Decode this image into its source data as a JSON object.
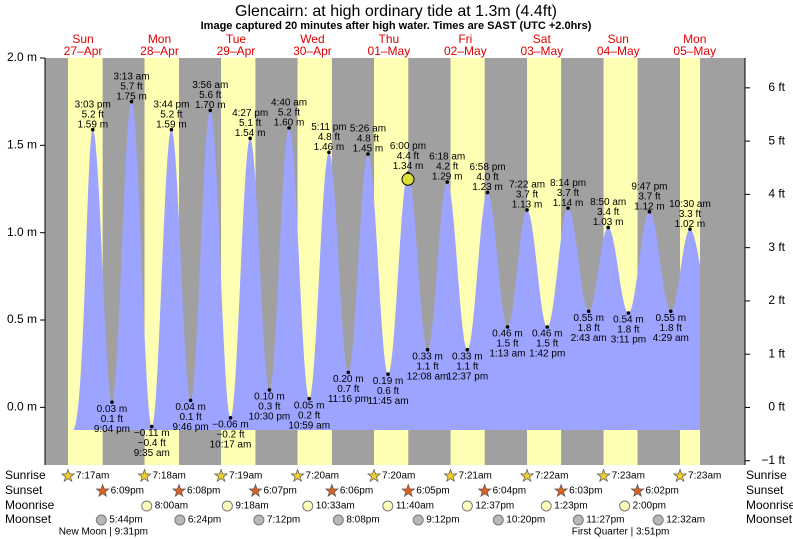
{
  "title": "Glencairn: at high  ordinary tide at 1.3m (4.4ft)",
  "subtitle": "Image captured 20 minutes after high water. Times are SAST (UTC +2.0hrs)",
  "y_axis": {
    "lim": [
      -0.33,
      2.0
    ],
    "ticks": [
      {
        "value": 2.0,
        "label": "2.0 m"
      },
      {
        "value": 1.5,
        "label": "1.5 m"
      },
      {
        "value": 1.0,
        "label": "1.0 m"
      },
      {
        "value": 0.5,
        "label": "0.5 m"
      },
      {
        "value": 0.0,
        "label": "0.0 m"
      }
    ]
  },
  "y2_axis": {
    "lim": [
      -1.08,
      6.56
    ],
    "ticks": [
      {
        "value": 6,
        "label": "6 ft"
      },
      {
        "value": 5,
        "label": "5 ft"
      },
      {
        "value": 4,
        "label": "4 ft"
      },
      {
        "value": 3,
        "label": "3 ft"
      },
      {
        "value": 2,
        "label": "2 ft"
      },
      {
        "value": 1,
        "label": "1 ft"
      },
      {
        "value": 0,
        "label": "0 ft"
      },
      {
        "value": -1,
        "label": "−1 ft"
      }
    ]
  },
  "row_labels": {
    "sunrise": "Sunrise",
    "sunset": "Sunset",
    "moonrise": "Moonrise",
    "moonset": "Moonset"
  },
  "days": [
    {
      "weekday": "Sun",
      "date": "27–Apr",
      "sunrise": "7:17am",
      "sunset": "6:09pm",
      "moonrise": null,
      "moonset": "5:44pm",
      "moon_phase": "New Moon | 9:31pm",
      "tides": [
        {
          "time": "3:03 pm",
          "height": 1.59,
          "height_label": "1.59 m",
          "feet_label": "5.2 ft"
        },
        {
          "time": "9:04 pm",
          "height": 0.03,
          "height_label": "0.03 m",
          "feet_label": "0.1 ft"
        }
      ]
    },
    {
      "weekday": "Mon",
      "date": "28–Apr",
      "sunrise": "7:18am",
      "sunset": "6:08pm",
      "moonrise": "8:00am",
      "moonset": "6:24pm",
      "moon_phase": null,
      "tides": [
        {
          "time": "3:13 am",
          "height": 1.75,
          "height_label": "1.75 m",
          "feet_label": "5.7 ft"
        },
        {
          "time": "9:35 am",
          "height": -0.11,
          "height_label": "−0.11 m",
          "feet_label": "−0.4 ft"
        },
        {
          "time": "3:44 pm",
          "height": 1.59,
          "height_label": "1.59 m",
          "feet_label": "5.2 ft"
        },
        {
          "time": "9:46 pm",
          "height": 0.04,
          "height_label": "0.04 m",
          "feet_label": "0.1 ft"
        }
      ]
    },
    {
      "weekday": "Tue",
      "date": "29–Apr",
      "sunrise": "7:19am",
      "sunset": "6:07pm",
      "moonrise": "9:18am",
      "moonset": "7:12pm",
      "moon_phase": null,
      "tides": [
        {
          "time": "3:56 am",
          "height": 1.7,
          "height_label": "1.70 m",
          "feet_label": "5.6 ft"
        },
        {
          "time": "10:17 am",
          "height": -0.06,
          "height_label": "−0.06 m",
          "feet_label": "−0.2 ft"
        },
        {
          "time": "4:27 pm",
          "height": 1.54,
          "height_label": "1.54 m",
          "feet_label": "5.1 ft"
        },
        {
          "time": "10:30 pm",
          "height": 0.1,
          "height_label": "0.10 m",
          "feet_label": "0.3 ft"
        }
      ]
    },
    {
      "weekday": "Wed",
      "date": "30–Apr",
      "sunrise": "7:20am",
      "sunset": "6:06pm",
      "moonrise": "10:33am",
      "moonset": "8:08pm",
      "moon_phase": null,
      "tides": [
        {
          "time": "4:40 am",
          "height": 1.6,
          "height_label": "1.60 m",
          "feet_label": "5.2 ft"
        },
        {
          "time": "10:59 am",
          "height": 0.05,
          "height_label": "0.05 m",
          "feet_label": "0.2 ft"
        },
        {
          "time": "5:11 pm",
          "height": 1.46,
          "height_label": "1.46 m",
          "feet_label": "4.8 ft"
        },
        {
          "time": "11:16 pm",
          "height": 0.2,
          "height_label": "0.20 m",
          "feet_label": "0.7 ft"
        }
      ]
    },
    {
      "weekday": "Thu",
      "date": "01–May",
      "sunrise": "7:20am",
      "sunset": "6:05pm",
      "moonrise": "11:40am",
      "moonset": "9:12pm",
      "moon_phase": null,
      "tides": [
        {
          "time": "5:26 am",
          "height": 1.45,
          "height_label": "1.45 m",
          "feet_label": "4.8 ft"
        },
        {
          "time": "11:45 am",
          "height": 0.19,
          "height_label": "0.19 m",
          "feet_label": "0.6 ft"
        },
        {
          "time": "6:00 pm",
          "height": 1.34,
          "height_label": "1.34 m",
          "feet_label": "4.4 ft",
          "now": true
        }
      ]
    },
    {
      "weekday": "Fri",
      "date": "02–May",
      "sunrise": "7:21am",
      "sunset": "6:04pm",
      "moonrise": "12:37pm",
      "moonset": "10:20pm",
      "moon_phase": null,
      "tides": [
        {
          "time": "12:08 am",
          "height": 0.33,
          "height_label": "0.33 m",
          "feet_label": "1.1 ft"
        },
        {
          "time": "6:18 am",
          "height": 1.29,
          "height_label": "1.29 m",
          "feet_label": "4.2 ft"
        },
        {
          "time": "12:37 pm",
          "height": 0.33,
          "height_label": "0.33 m",
          "feet_label": "1.1 ft"
        },
        {
          "time": "6:58 pm",
          "height": 1.23,
          "height_label": "1.23 m",
          "feet_label": "4.0 ft"
        }
      ]
    },
    {
      "weekday": "Sat",
      "date": "03–May",
      "sunrise": "7:22am",
      "sunset": "6:03pm",
      "moonrise": "1:23pm",
      "moonset": "11:27pm",
      "moon_phase": null,
      "tides": [
        {
          "time": "1:13 am",
          "height": 0.46,
          "height_label": "0.46 m",
          "feet_label": "1.5 ft"
        },
        {
          "time": "7:22 am",
          "height": 1.13,
          "height_label": "1.13 m",
          "feet_label": "3.7 ft"
        },
        {
          "time": "1:42 pm",
          "height": 0.46,
          "height_label": "0.46 m",
          "feet_label": "1.5 ft"
        },
        {
          "time": "8:14 pm",
          "height": 1.14,
          "height_label": "1.14 m",
          "feet_label": "3.7 ft"
        }
      ]
    },
    {
      "weekday": "Sun",
      "date": "04–May",
      "sunrise": "7:23am",
      "sunset": "6:02pm",
      "moonrise": "2:00pm",
      "moonset": null,
      "moon_phase": "First Quarter | 3:51pm",
      "tides": [
        {
          "time": "2:43 am",
          "height": 0.55,
          "height_label": "0.55 m",
          "feet_label": "1.8 ft"
        },
        {
          "time": "8:50 am",
          "height": 1.03,
          "height_label": "1.03 m",
          "feet_label": "3.4 ft"
        },
        {
          "time": "3:11 pm",
          "height": 0.54,
          "height_label": "0.54 m",
          "feet_label": "1.8 ft"
        },
        {
          "time": "9:47 pm",
          "height": 1.12,
          "height_label": "1.12 m",
          "feet_label": "3.7 ft"
        }
      ]
    },
    {
      "weekday": "Mon",
      "date": "05–May",
      "sunrise": "7:23am",
      "sunset": null,
      "moonrise": null,
      "moonset": "12:32am",
      "moon_phase": null,
      "tides": [
        {
          "time": "4:29 am",
          "height": 0.55,
          "height_label": "0.55 m",
          "feet_label": "1.8 ft"
        },
        {
          "time": "10:30 am",
          "height": 1.02,
          "height_label": "1.02 m",
          "feet_label": "3.3 ft"
        }
      ]
    }
  ]
}
